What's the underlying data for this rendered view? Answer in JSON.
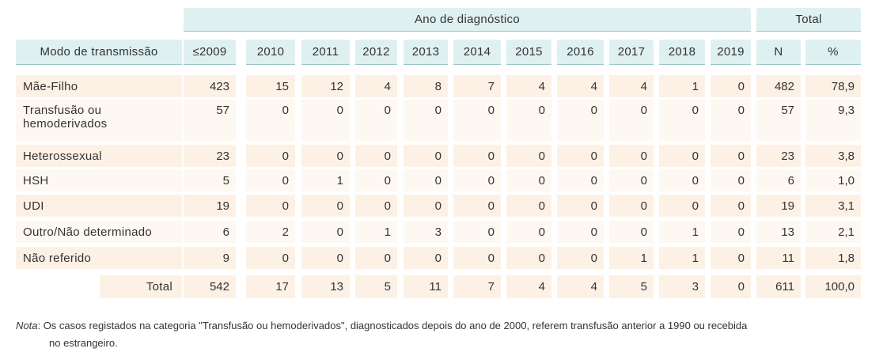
{
  "header": {
    "group_year": "Ano de diagnóstico",
    "group_total": "Total",
    "row_label": "Modo de transmissão",
    "years": [
      "≤2009",
      "2010",
      "2011",
      "2012",
      "2013",
      "2014",
      "2015",
      "2016",
      "2017",
      "2018",
      "2019"
    ],
    "total_cols": [
      "N",
      "%"
    ]
  },
  "rows": [
    {
      "label": "Mãe-Filho",
      "values": [
        "423",
        "15",
        "12",
        "4",
        "8",
        "7",
        "4",
        "4",
        "4",
        "1",
        "0"
      ],
      "n": "482",
      "pct": "78,9"
    },
    {
      "label": "Transfusão ou\nhemoderivados",
      "values": [
        "57",
        "0",
        "0",
        "0",
        "0",
        "0",
        "0",
        "0",
        "0",
        "0",
        "0"
      ],
      "n": "57",
      "pct": "9,3"
    },
    {
      "label": "Heterossexual",
      "values": [
        "23",
        "0",
        "0",
        "0",
        "0",
        "0",
        "0",
        "0",
        "0",
        "0",
        "0"
      ],
      "n": "23",
      "pct": "3,8"
    },
    {
      "label": "HSH",
      "values": [
        "5",
        "0",
        "1",
        "0",
        "0",
        "0",
        "0",
        "0",
        "0",
        "0",
        "0"
      ],
      "n": "6",
      "pct": "1,0"
    },
    {
      "label": "UDI",
      "values": [
        "19",
        "0",
        "0",
        "0",
        "0",
        "0",
        "0",
        "0",
        "0",
        "0",
        "0"
      ],
      "n": "19",
      "pct": "3,1"
    },
    {
      "label": "Outro/Não determinado",
      "values": [
        "6",
        "2",
        "0",
        "1",
        "3",
        "0",
        "0",
        "0",
        "0",
        "1",
        "0"
      ],
      "n": "13",
      "pct": "2,1"
    },
    {
      "label": "Não referido",
      "values": [
        "9",
        "0",
        "0",
        "0",
        "0",
        "0",
        "0",
        "0",
        "1",
        "1",
        "0"
      ],
      "n": "11",
      "pct": "1,8"
    }
  ],
  "total_row": {
    "label": "Total",
    "values": [
      "542",
      "17",
      "13",
      "5",
      "11",
      "7",
      "4",
      "4",
      "5",
      "3",
      "0"
    ],
    "n": "611",
    "pct": "100,0"
  },
  "note": {
    "prefix": "Nota",
    "line1": ": Os casos registados na categoria \"Transfusão ou hemoderivados\", diagnosticados depois do ano de 2000, referem transfusão anterior a 1990 ou recebida",
    "line2": "no estrangeiro."
  },
  "colors": {
    "header_bg": "#dff0f0",
    "header_rule": "#9cc6c9",
    "row_odd": "#fdf1e6",
    "row_even": "#fef8f2"
  }
}
